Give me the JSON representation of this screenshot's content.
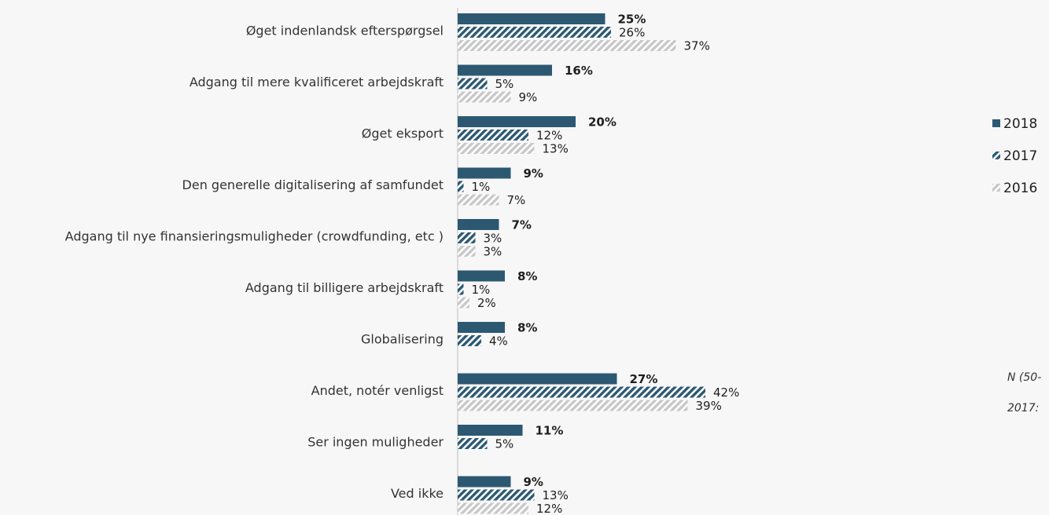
{
  "chart_data": {
    "type": "bar",
    "orientation": "horizontal",
    "categories": [
      "Øget indenlandsk efterspørgsel",
      "Adgang til mere kvalificeret arbejdskraft",
      "Øget eksport",
      "Den generelle digitalisering af samfundet",
      "Adgang til nye finansieringsmuligheder (crowdfunding, etc )",
      "Adgang til billigere arbejdskraft",
      "Globalisering",
      "Andet, notér venligst",
      "Ser ingen muligheder",
      "Ved ikke"
    ],
    "series": [
      {
        "name": "2018",
        "values": [
          25,
          16,
          20,
          9,
          7,
          8,
          8,
          27,
          11,
          9
        ],
        "labels": [
          "25%",
          "16%",
          "20%",
          "9%",
          "7%",
          "8%",
          "8%",
          "27%",
          "11%",
          "9%"
        ]
      },
      {
        "name": "2017",
        "values": [
          26,
          5,
          12,
          1,
          3,
          1,
          4,
          42,
          5,
          13
        ],
        "labels": [
          "26%",
          "5%",
          "12%",
          "1%",
          "3%",
          "1%",
          "4%",
          "42%",
          "5%",
          "13%"
        ]
      },
      {
        "name": "2016",
        "values": [
          37,
          9,
          13,
          7,
          3,
          2,
          null,
          39,
          null,
          12
        ],
        "labels": [
          "37%",
          "9%",
          "13%",
          "7%",
          "3%",
          "2%",
          null,
          "39%",
          null,
          "12%"
        ]
      }
    ],
    "legend": {
      "position": "right",
      "items": [
        {
          "label": "2018",
          "pattern": "solid"
        },
        {
          "label": "2017",
          "pattern": "hatch-dark"
        },
        {
          "label": "2016",
          "pattern": "hatch-light"
        }
      ]
    },
    "notes": [
      "N (50-",
      "2017:"
    ],
    "xlim": [
      0,
      48
    ],
    "grid": false,
    "colors": {
      "2018": "#2c5872",
      "2017": "#2c5872",
      "2016": "#c8c8c8",
      "axis": "#bdbdbd"
    }
  }
}
